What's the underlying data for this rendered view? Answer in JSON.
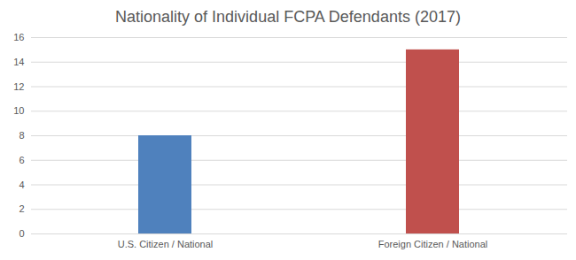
{
  "chart_data": {
    "type": "bar",
    "title": "Nationality of Individual FCPA Defendants (2017)",
    "categories": [
      "U.S. Citizen / National",
      "Foreign Citizen / National"
    ],
    "values": [
      8,
      15
    ],
    "colors": [
      "#4f81bd",
      "#c0504d"
    ],
    "ylim": [
      0,
      16
    ],
    "yticks": [
      0,
      2,
      4,
      6,
      8,
      10,
      12,
      14,
      16
    ],
    "grid": true
  }
}
